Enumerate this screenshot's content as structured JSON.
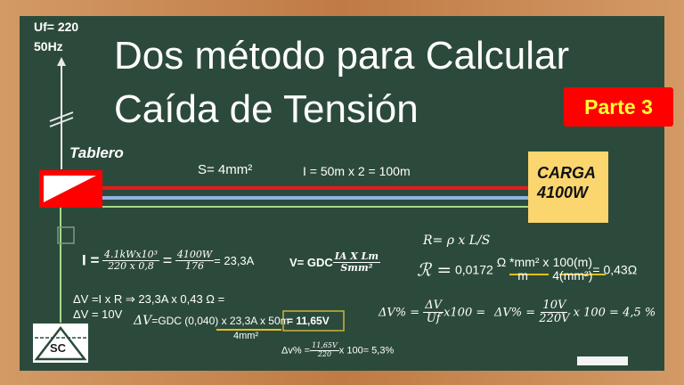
{
  "source": {
    "uf": "Uf= 220",
    "freq": "50Hz"
  },
  "title": {
    "line1": "Dos método para Calcular",
    "line2": "Caída de Tensión"
  },
  "badge": {
    "label": "Parte 3",
    "bg": "#ff0000",
    "fg": "#ffff33"
  },
  "tablero": {
    "label": "Tablero"
  },
  "cable": {
    "section": "S= 4mm²",
    "length": "I = 50m  x 2 = 100m"
  },
  "load": {
    "line1": "CARGA",
    "line2": "4100W",
    "bg": "#fbd56e"
  },
  "formulas": {
    "current": {
      "lhs": "I =",
      "n1": "4.1kWx10³",
      "d1": "220 x 0,8",
      "eq": "=",
      "n2": "4100W",
      "d2": "176",
      "result": "= 23,3A"
    },
    "gdc": {
      "lhs": "V= GDC",
      "n": "IA X Lm",
      "d": "Smm²"
    },
    "resistivity": "R= ρ x L/S",
    "resistance": {
      "lhs": "ℛ =",
      "rho": "0,0172",
      "n1": "Ω *mm² x",
      "d1": "m",
      "n2": "100(m)",
      "d2": "4(mm²)",
      "result": "= 0,43Ω"
    },
    "drop_ir": "ΔV =I x R ⇒ 23,3A x 0,43 Ω =",
    "drop_result": "ΔV = 10V",
    "drop_pct_formula": {
      "lhs": "ΔV% =",
      "n": "ΔV",
      "d": "Uf",
      "rhs": "x100 ="
    },
    "drop_pct_calc": {
      "lhs": "ΔV% =",
      "n": "10V",
      "d": "220V",
      "rhs": "x 100 = 4,5 %"
    },
    "drop_gdc": {
      "lhs": "ΔV",
      "text": "=GDC (0,040) x 23,3A x 50m",
      "denominator": "4mm²",
      "result": "= 11,65V"
    },
    "drop_gdc_pct": {
      "lhs": "Δv% =",
      "n": "11,65V",
      "d": "220",
      "rhs": "x 100= 5,3%"
    }
  },
  "logo": "SC"
}
